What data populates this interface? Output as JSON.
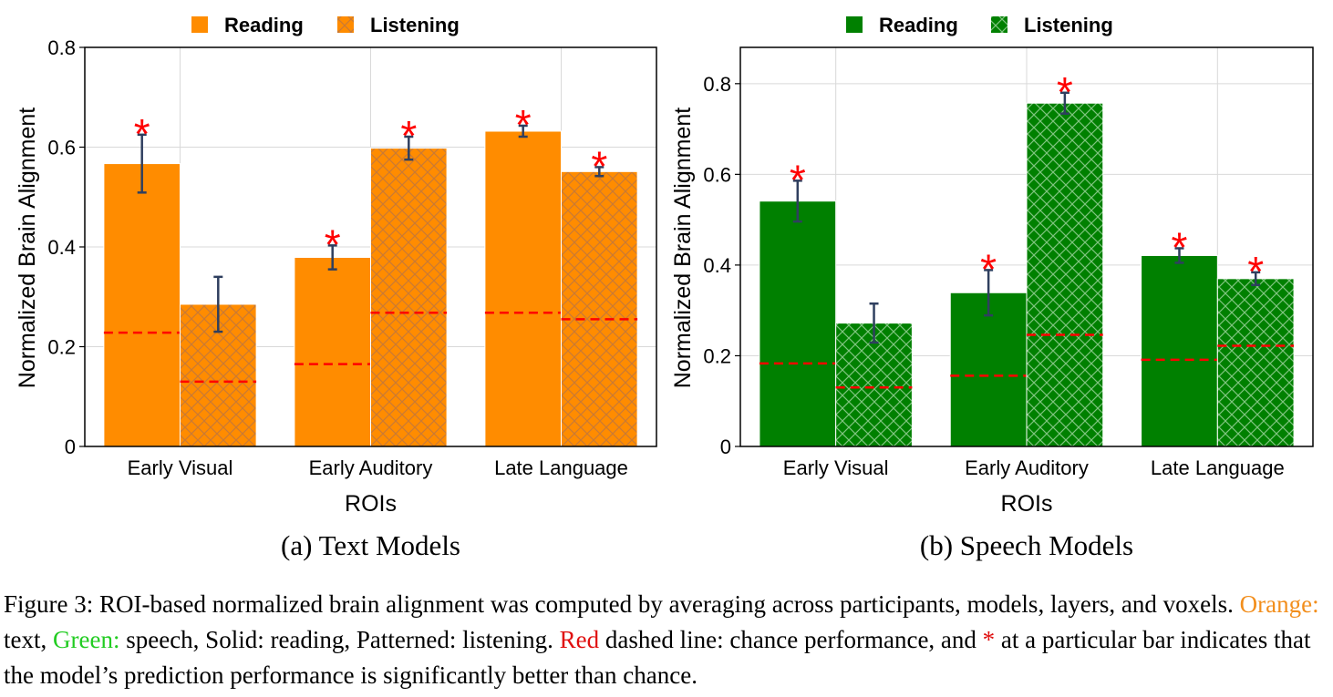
{
  "colors": {
    "text_models": "#ff8c00",
    "speech_models": "#008000",
    "chance_line": "#ff0000",
    "significance_star": "#ff0000",
    "error_bar": "#2f3f5f"
  },
  "chart_data": [
    {
      "type": "bar",
      "subcaption": "(a) Text Models",
      "xlabel": "ROIs",
      "ylabel": "Normalized Brain Alignment",
      "ylim": [
        0,
        0.8
      ],
      "yticks": [
        "0",
        "0.2",
        "0.4",
        "0.6",
        "0.8"
      ],
      "grid": true,
      "legend_position": "top",
      "categories": [
        "Early Visual",
        "Early Auditory",
        "Late Language"
      ],
      "series": [
        {
          "name": "Reading",
          "pattern": "solid",
          "values": [
            0.567,
            0.379,
            0.632
          ],
          "error": [
            0.058,
            0.024,
            0.011
          ],
          "chance": [
            0.228,
            0.165,
            0.268
          ],
          "significant": [
            true,
            true,
            true
          ]
        },
        {
          "name": "Listening",
          "pattern": "crosshatch",
          "values": [
            0.285,
            0.598,
            0.551
          ],
          "error": [
            0.055,
            0.023,
            0.009
          ],
          "chance": [
            0.13,
            0.268,
            0.255
          ],
          "significant": [
            false,
            true,
            true
          ]
        }
      ]
    },
    {
      "type": "bar",
      "subcaption": "(b) Speech Models",
      "xlabel": "ROIs",
      "ylabel": "Normalized Brain Alignment",
      "ylim": [
        0,
        0.88
      ],
      "yticks": [
        "0",
        "0.2",
        "0.4",
        "0.6",
        "0.8"
      ],
      "grid": true,
      "legend_position": "top",
      "categories": [
        "Early Visual",
        "Early Auditory",
        "Late Language"
      ],
      "series": [
        {
          "name": "Reading",
          "pattern": "solid",
          "values": [
            0.541,
            0.339,
            0.421
          ],
          "error": [
            0.045,
            0.05,
            0.016
          ],
          "chance": [
            0.183,
            0.156,
            0.191
          ],
          "significant": [
            true,
            true,
            true
          ]
        },
        {
          "name": "Listening",
          "pattern": "crosshatch",
          "values": [
            0.272,
            0.757,
            0.37
          ],
          "error": [
            0.043,
            0.023,
            0.014
          ],
          "chance": [
            0.13,
            0.246,
            0.222
          ],
          "significant": [
            false,
            true,
            true
          ]
        }
      ]
    }
  ],
  "caption": {
    "label": "Figure 3:",
    "text_1": " ROI-based normalized brain alignment was computed by averaging across participants, models, layers, and voxels. ",
    "orange_label": "Orange:",
    "text_2": " text, ",
    "green_label": "Green:",
    "text_3": " speech, Solid: reading, Patterned: listening. ",
    "red_label": "Red",
    "text_4": " dashed line: chance performance, and ",
    "star_label": "*",
    "text_5": " at a particular bar indicates that the model’s prediction performance is significantly better than chance."
  }
}
